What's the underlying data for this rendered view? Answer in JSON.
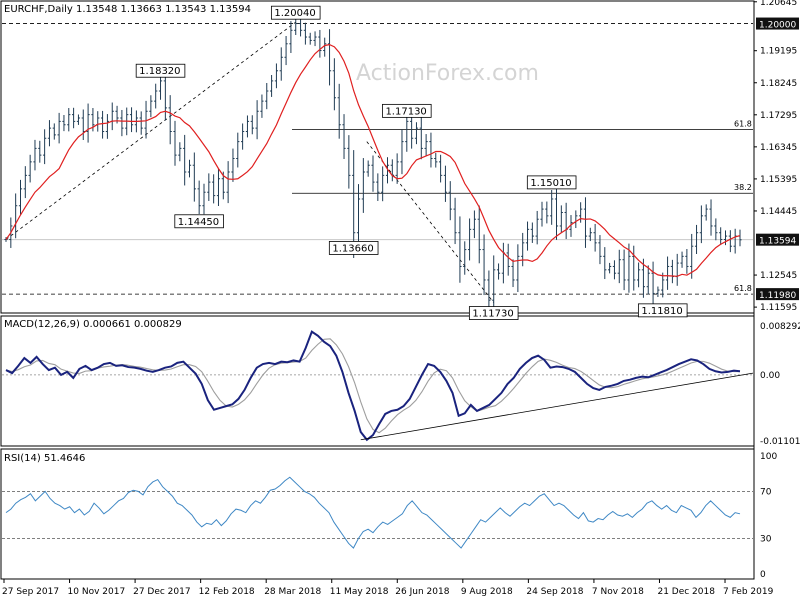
{
  "header": {
    "symbol_line": "EURCHF,Daily  1.13548 1.13663 1.13543 1.13594",
    "watermark": "ActionForex.com"
  },
  "colors": {
    "candles": "#1f3b53",
    "ma": "#e02020",
    "macd": "#1a237e",
    "macd_signal": "#9e9e9e",
    "rsi": "#3f88c5",
    "grid": "#b0b0b0",
    "price_tag": "#111111"
  },
  "chart_data": [
    {
      "type": "line",
      "name_label": "price",
      "ylim": [
        1.1145,
        1.2052
      ],
      "y_ticks": [
        "1.20645",
        "1.20000",
        "1.19195",
        "1.18245",
        "1.17295",
        "1.16345",
        "1.15395",
        "1.14445",
        "1.13594",
        "1.12545",
        "1.11980",
        "1.11595"
      ],
      "x_ticks": [
        "27 Sep 2017",
        "10 Nov 2017",
        "27 Dec 2017",
        "12 Feb 2018",
        "28 Mar 2018",
        "11 May 2018",
        "26 Jun 2018",
        "9 Aug 2018",
        "24 Sep 2018",
        "7 Nov 2018",
        "21 Dec 2018",
        "7 Feb 2019"
      ],
      "last_price": "1.13594",
      "last_value": 1.13594,
      "hlines": [
        {
          "value": 1.2,
          "tag": "1.20000",
          "style": "dash"
        },
        {
          "value": 1.1198,
          "tag": "1.11980",
          "style": "dash",
          "fib": "61.8"
        },
        {
          "value": 1.1686,
          "fib": "61.8",
          "style": "solid"
        },
        {
          "value": 1.1497,
          "fib": "38.2",
          "style": "solid"
        }
      ],
      "annotations": [
        {
          "text": "1.20040",
          "value": 1.2004,
          "index": 60
        },
        {
          "text": "1.18320",
          "value": 1.1832,
          "index": 32
        },
        {
          "text": "1.14450",
          "value": 1.1445,
          "index": 40
        },
        {
          "text": "1.17130",
          "value": 1.1713,
          "index": 83
        },
        {
          "text": "1.13660",
          "value": 1.1366,
          "index": 72
        },
        {
          "text": "1.15010",
          "value": 1.1501,
          "index": 113
        },
        {
          "text": "1.11730",
          "value": 1.1173,
          "index": 101
        },
        {
          "text": "1.11810",
          "value": 1.1181,
          "index": 136
        }
      ],
      "closes": [
        1.136,
        1.14,
        1.146,
        1.151,
        1.155,
        1.159,
        1.163,
        1.161,
        1.166,
        1.169,
        1.167,
        1.171,
        1.17,
        1.173,
        1.171,
        1.172,
        1.168,
        1.173,
        1.17,
        1.172,
        1.168,
        1.171,
        1.174,
        1.172,
        1.169,
        1.173,
        1.17,
        1.172,
        1.169,
        1.174,
        1.177,
        1.18,
        1.183,
        1.175,
        1.168,
        1.161,
        1.163,
        1.156,
        1.158,
        1.151,
        1.146,
        1.15,
        1.153,
        1.149,
        1.154,
        1.15,
        1.156,
        1.16,
        1.165,
        1.168,
        1.171,
        1.169,
        1.174,
        1.177,
        1.18,
        1.183,
        1.186,
        1.19,
        1.194,
        1.198,
        1.2,
        1.198,
        1.196,
        1.195,
        1.196,
        1.192,
        1.194,
        1.186,
        1.178,
        1.17,
        1.163,
        1.155,
        1.138,
        1.148,
        1.156,
        1.158,
        1.153,
        1.15,
        1.155,
        1.158,
        1.155,
        1.159,
        1.165,
        1.171,
        1.166,
        1.169,
        1.163,
        1.165,
        1.16,
        1.159,
        1.155,
        1.15,
        1.145,
        1.138,
        1.128,
        1.133,
        1.139,
        1.142,
        1.133,
        1.124,
        1.118,
        1.127,
        1.126,
        1.132,
        1.128,
        1.124,
        1.131,
        1.135,
        1.139,
        1.137,
        1.142,
        1.145,
        1.143,
        1.148,
        1.14,
        1.144,
        1.139,
        1.141,
        1.143,
        1.145,
        1.137,
        1.138,
        1.135,
        1.131,
        1.127,
        1.128,
        1.126,
        1.13,
        1.124,
        1.131,
        1.124,
        1.127,
        1.122,
        1.126,
        1.12,
        1.121,
        1.124,
        1.128,
        1.125,
        1.129,
        1.131,
        1.128,
        1.134,
        1.138,
        1.143,
        1.145,
        1.14,
        1.138,
        1.136,
        1.137,
        1.134,
        1.137,
        1.1359
      ]
    },
    {
      "type": "line",
      "name_label": "macd",
      "title": "MACD(12,26,9) 0.000661 0.000829",
      "ylim": [
        -0.0115,
        0.0088
      ],
      "y_ticks": [
        "0.008292",
        "0.00",
        "-0.011015"
      ],
      "values": [
        0.0008,
        0.0003,
        0.0015,
        0.0028,
        0.002,
        0.003,
        0.0018,
        0.0008,
        0.0012,
        0.0,
        0.0005,
        -0.0005,
        0.001,
        0.0015,
        0.0008,
        0.0012,
        0.0018,
        0.002,
        0.0015,
        0.0016,
        0.0013,
        0.0012,
        0.001,
        0.0007,
        0.0005,
        0.0008,
        0.0012,
        0.0014,
        0.002,
        0.0022,
        0.0012,
        0.0002,
        -0.0015,
        -0.0042,
        -0.0058,
        -0.0055,
        -0.0052,
        -0.0049,
        -0.004,
        -0.0025,
        -0.0005,
        0.0012,
        0.0018,
        0.002,
        0.0018,
        0.0022,
        0.0021,
        0.0024,
        0.0022,
        0.0045,
        0.0072,
        0.0065,
        0.0055,
        0.0048,
        0.0032,
        0.0005,
        -0.003,
        -0.006,
        -0.0095,
        -0.0108,
        -0.01,
        -0.0082,
        -0.0065,
        -0.006,
        -0.0058,
        -0.0052,
        -0.004,
        -0.002,
        0.0,
        0.0018,
        0.0015,
        0.0005,
        -0.001,
        -0.003,
        -0.0068,
        -0.0064,
        -0.005,
        -0.006,
        -0.0055,
        -0.005,
        -0.004,
        -0.003,
        -0.0015,
        -0.0005,
        0.001,
        0.002,
        0.0028,
        0.0032,
        0.0025,
        0.0012,
        0.0014,
        0.0013,
        0.001,
        0.0005,
        -0.0005,
        -0.0015,
        -0.0022,
        -0.0025,
        -0.002,
        -0.0018,
        -0.0015,
        -0.001,
        -0.0008,
        -0.0005,
        -0.0003,
        -0.0004,
        0.0,
        0.0004,
        0.0008,
        0.0013,
        0.0018,
        0.0022,
        0.0026,
        0.0024,
        0.0018,
        0.001,
        0.0006,
        0.0004,
        0.0005,
        0.0007,
        0.0006
      ]
    },
    {
      "type": "line",
      "name_label": "rsi",
      "title": "RSI(14) 51.4646",
      "ylim": [
        0,
        100
      ],
      "y_ticks": [
        "100",
        "70",
        "30",
        "0"
      ],
      "values": [
        52,
        55,
        60,
        63,
        65,
        68,
        62,
        66,
        70,
        64,
        60,
        58,
        55,
        57,
        52,
        55,
        50,
        53,
        60,
        56,
        51,
        54,
        58,
        62,
        64,
        69,
        71,
        70,
        67,
        74,
        78,
        80,
        74,
        70,
        66,
        60,
        58,
        54,
        50,
        44,
        40,
        43,
        42,
        46,
        41,
        45,
        51,
        55,
        54,
        52,
        58,
        62,
        60,
        65,
        71,
        72,
        75,
        79,
        82,
        78,
        74,
        70,
        68,
        65,
        60,
        56,
        52,
        44,
        38,
        32,
        26,
        22,
        30,
        36,
        38,
        35,
        40,
        44,
        42,
        45,
        48,
        51,
        58,
        62,
        57,
        52,
        50,
        46,
        42,
        38,
        34,
        30,
        26,
        22,
        28,
        34,
        40,
        46,
        44,
        48,
        52,
        56,
        52,
        49,
        53,
        57,
        60,
        58,
        62,
        66,
        68,
        63,
        58,
        60,
        58,
        54,
        50,
        47,
        52,
        45,
        44,
        47,
        46,
        50,
        53,
        50,
        49,
        51,
        48,
        52,
        55,
        60,
        62,
        58,
        55,
        58,
        54,
        52,
        58,
        56,
        54,
        48,
        52,
        58,
        62,
        58,
        54,
        50,
        48,
        52,
        51
      ]
    }
  ]
}
